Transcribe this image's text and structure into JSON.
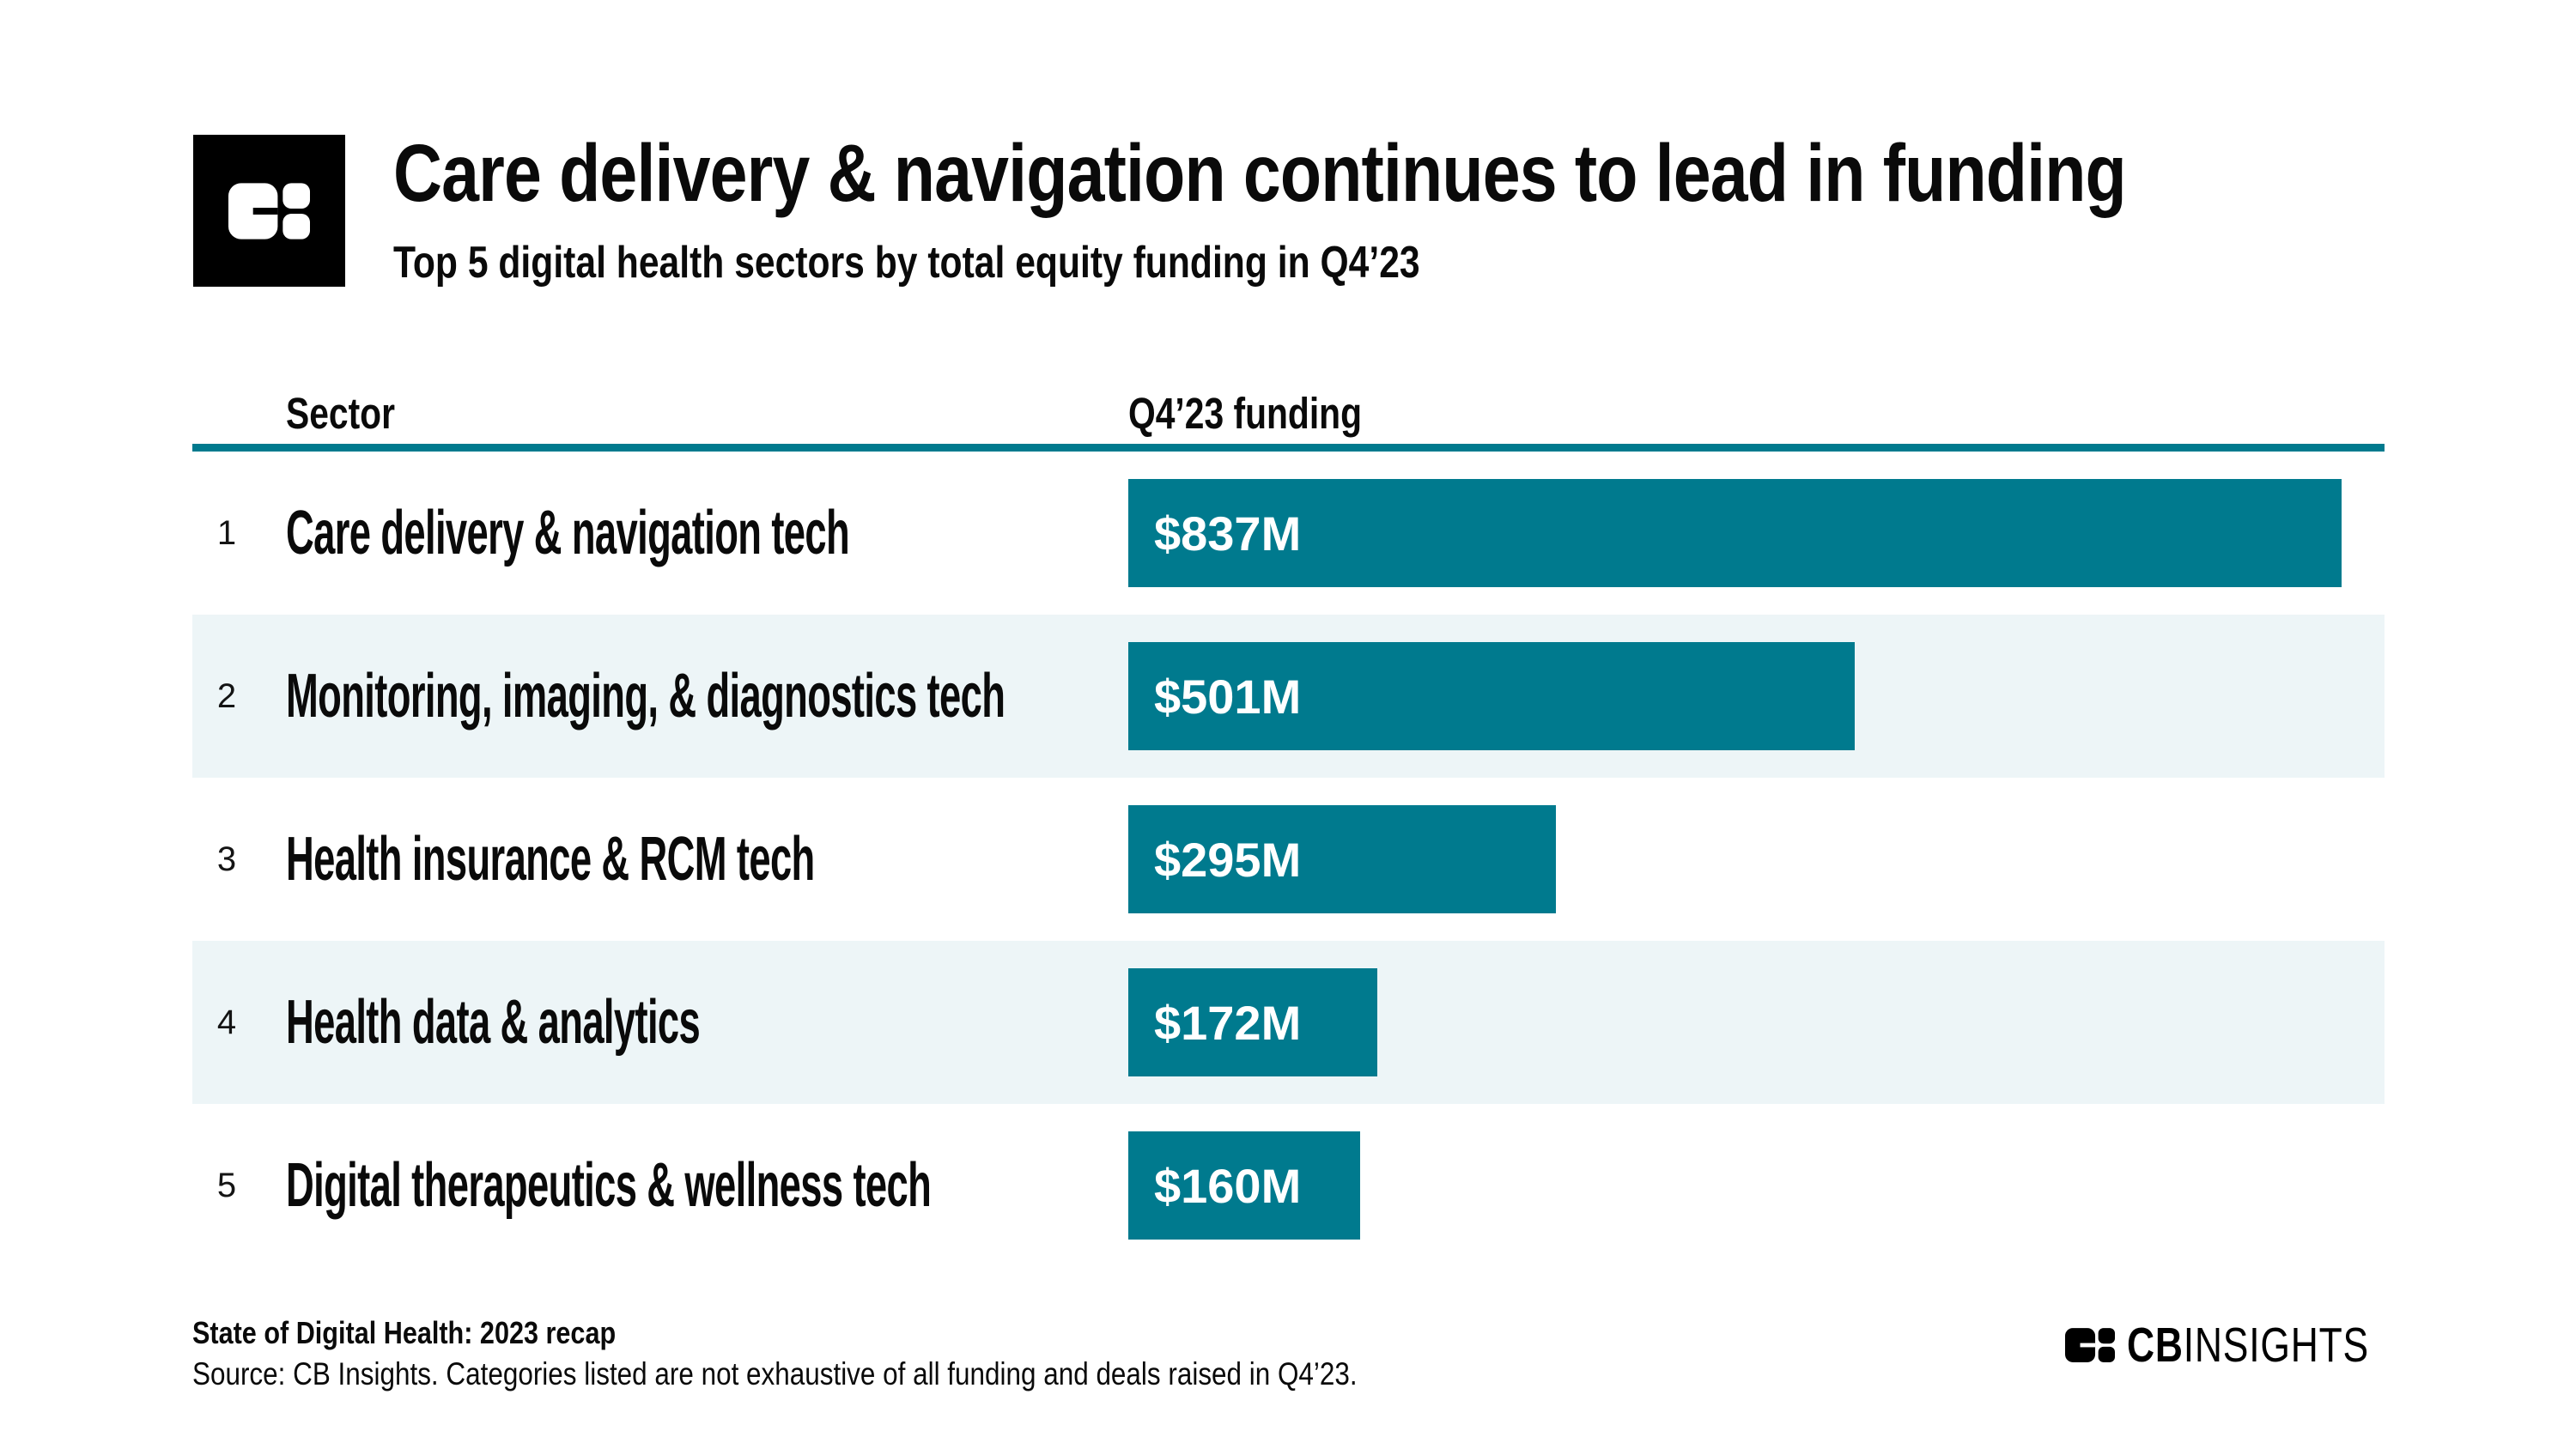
{
  "table_header": {
    "sector": "Sector",
    "funding": "Q4’23 funding"
  },
  "chart_data": {
    "type": "bar",
    "orientation": "horizontal",
    "title": "Care delivery & navigation continues to lead in funding",
    "subtitle": "Top 5 digital health sectors by total equity funding in Q4’23",
    "categories": [
      "Care delivery & navigation tech",
      "Monitoring, imaging, & diagnostics tech",
      "Health insurance & RCM tech",
      "Health data & analytics",
      "Digital therapeutics & wellness tech"
    ],
    "ranks": [
      "1",
      "2",
      "3",
      "4",
      "5"
    ],
    "values": [
      837,
      501,
      295,
      172,
      160
    ],
    "value_labels": [
      "$837M",
      "$501M",
      "$295M",
      "$172M",
      "$160M"
    ],
    "unit": "$M",
    "xlim": [
      0,
      865
    ],
    "grid": "off",
    "legend": "none",
    "bar_color": "#007A8E",
    "row_stripe_color": "#EDF5F7"
  },
  "footer": {
    "report_title": "State of Digital Health: 2023 recap",
    "source_note": "Source: CB Insights. Categories listed are not exhaustive of all funding and deals raised in Q4’23.",
    "brand_cb": "CB",
    "brand_insights": "INSIGHTS"
  },
  "colors": {
    "accent_teal": "#007A8E",
    "stripe": "#EDF5F7",
    "logo_black": "#000000"
  }
}
